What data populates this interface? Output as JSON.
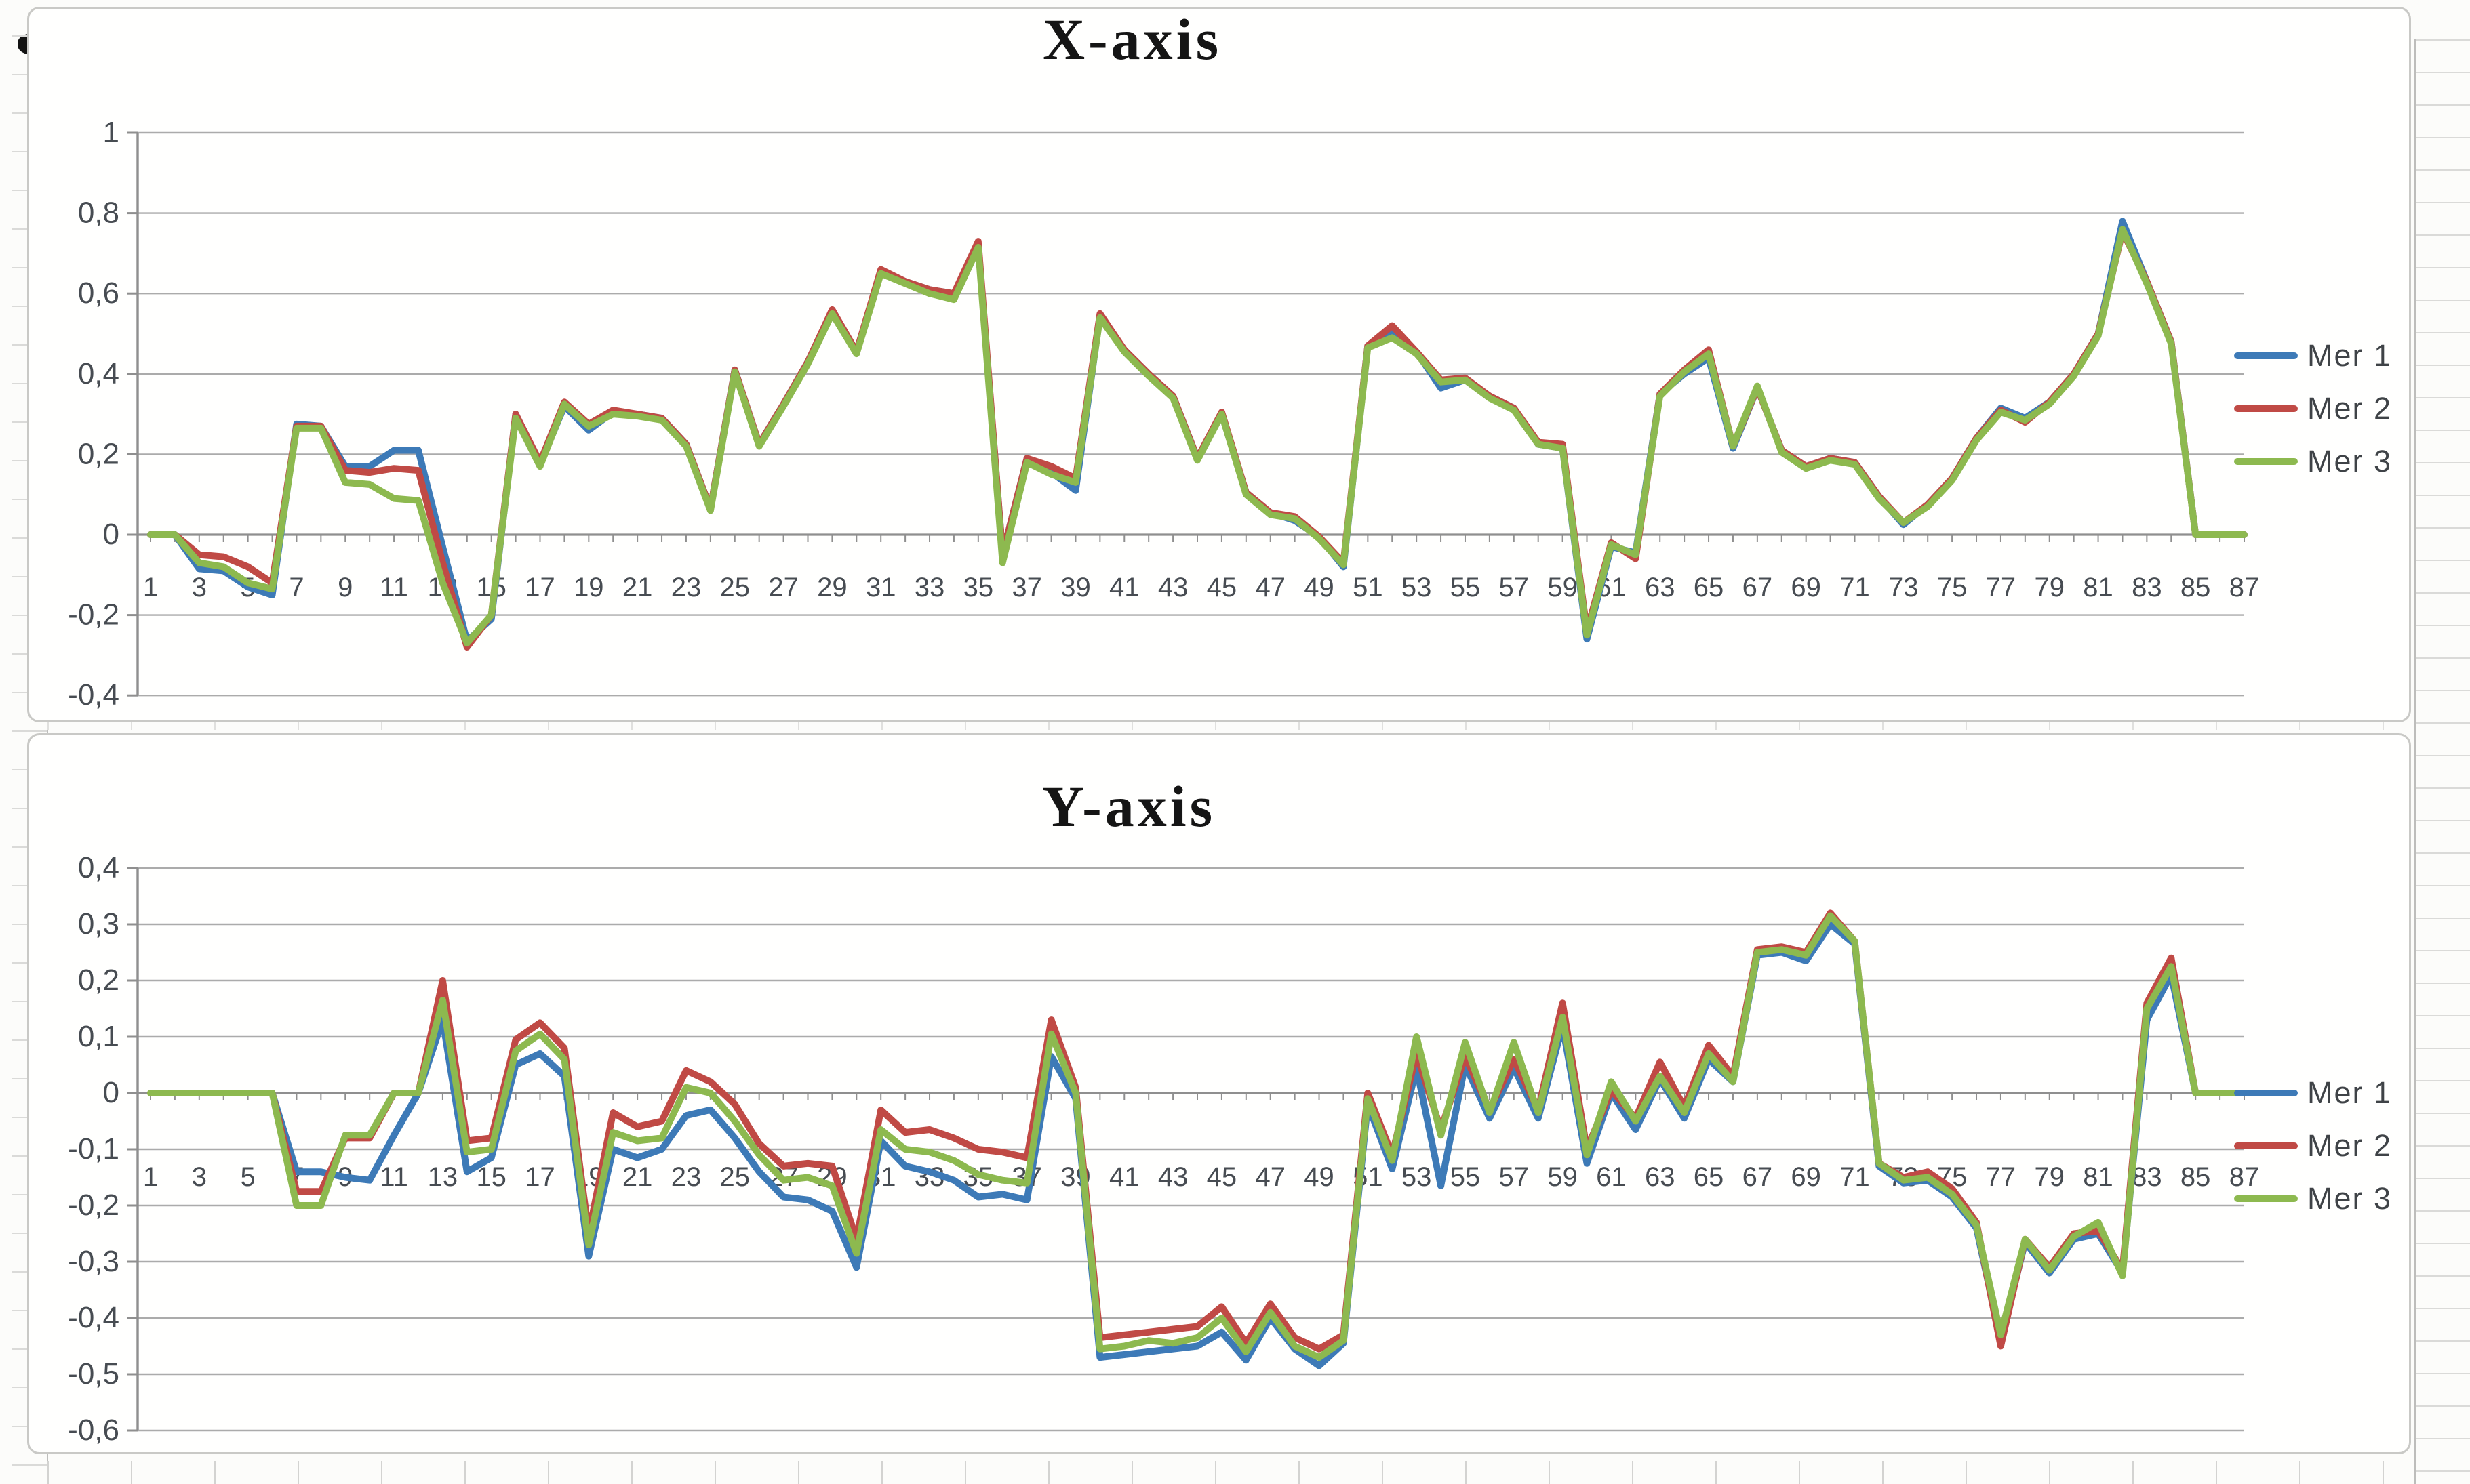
{
  "chart_data": [
    {
      "type": "line",
      "title": "X-axis",
      "legend_position": "right",
      "grid": true,
      "ylim": [
        -0.4,
        1.0
      ],
      "ytick_values": [
        1,
        0.8,
        0.6,
        0.4,
        0.2,
        0,
        -0.2,
        -0.4
      ],
      "ytick_labels": [
        "1",
        "0,8",
        "0,6",
        "0,4",
        "0,2",
        "0",
        "-0,2",
        "-0,4"
      ],
      "x_range": [
        1,
        87
      ],
      "x_tick_labels": [
        "1",
        "3",
        "5",
        "7",
        "9",
        "11",
        "13",
        "15",
        "17",
        "19",
        "21",
        "23",
        "25",
        "27",
        "29",
        "31",
        "33",
        "35",
        "37",
        "39",
        "41",
        "43",
        "45",
        "47",
        "49",
        "51",
        "53",
        "55",
        "57",
        "59",
        "61",
        "63",
        "65",
        "67",
        "69",
        "71",
        "73",
        "75",
        "77",
        "79",
        "81",
        "83",
        "85",
        "87"
      ],
      "series": [
        {
          "name": "Mer 1",
          "color": "#3d7ab7",
          "values": [
            0,
            0,
            -0.085,
            -0.09,
            -0.13,
            -0.15,
            0.275,
            0.27,
            0.17,
            0.17,
            0.21,
            0.21,
            -0.03,
            -0.265,
            -0.21,
            0.3,
            0.175,
            0.32,
            0.26,
            0.305,
            0.3,
            0.29,
            0.225,
            0.065,
            0.41,
            0.225,
            0.325,
            0.43,
            0.555,
            0.455,
            0.655,
            0.63,
            0.61,
            0.6,
            0.72,
            -0.05,
            0.19,
            0.155,
            0.11,
            0.545,
            0.46,
            0.4,
            0.345,
            0.19,
            0.3,
            0.105,
            0.055,
            0.035,
            -0.005,
            -0.08,
            0.47,
            0.505,
            0.455,
            0.365,
            0.385,
            0.345,
            0.315,
            0.225,
            0.215,
            -0.26,
            -0.03,
            -0.045,
            0.35,
            0.4,
            0.44,
            0.215,
            0.365,
            0.21,
            0.17,
            0.19,
            0.18,
            0.095,
            0.025,
            0.075,
            0.14,
            0.24,
            0.315,
            0.29,
            0.33,
            0.4,
            0.5,
            0.78,
            0.63,
            0.48,
            0,
            0,
            0
          ]
        },
        {
          "name": "Mer 2",
          "color": "#c04a45",
          "values": [
            0,
            0,
            -0.05,
            -0.055,
            -0.08,
            -0.12,
            0.27,
            0.27,
            0.16,
            0.155,
            0.165,
            0.16,
            -0.07,
            -0.28,
            -0.2,
            0.3,
            0.18,
            0.33,
            0.275,
            0.31,
            0.3,
            0.29,
            0.225,
            0.065,
            0.41,
            0.225,
            0.325,
            0.43,
            0.56,
            0.455,
            0.66,
            0.63,
            0.61,
            0.6,
            0.73,
            -0.05,
            0.19,
            0.17,
            0.14,
            0.55,
            0.46,
            0.4,
            0.345,
            0.19,
            0.305,
            0.105,
            0.055,
            0.045,
            -0.005,
            -0.07,
            0.47,
            0.52,
            0.455,
            0.385,
            0.39,
            0.345,
            0.315,
            0.23,
            0.225,
            -0.24,
            -0.02,
            -0.06,
            0.35,
            0.41,
            0.46,
            0.22,
            0.365,
            0.21,
            0.17,
            0.19,
            0.18,
            0.095,
            0.03,
            0.075,
            0.14,
            0.24,
            0.31,
            0.28,
            0.33,
            0.4,
            0.5,
            0.755,
            0.63,
            0.48,
            0,
            0,
            0
          ]
        },
        {
          "name": "Mer 3",
          "color": "#8db94f",
          "values": [
            0,
            0,
            -0.07,
            -0.08,
            -0.12,
            -0.135,
            0.265,
            0.265,
            0.13,
            0.125,
            0.09,
            0.085,
            -0.12,
            -0.27,
            -0.2,
            0.29,
            0.17,
            0.325,
            0.27,
            0.3,
            0.295,
            0.285,
            0.22,
            0.06,
            0.405,
            0.22,
            0.32,
            0.425,
            0.55,
            0.45,
            0.65,
            0.625,
            0.6,
            0.585,
            0.715,
            -0.07,
            0.18,
            0.15,
            0.13,
            0.54,
            0.455,
            0.395,
            0.34,
            0.185,
            0.3,
            0.1,
            0.05,
            0.04,
            -0.01,
            -0.075,
            0.465,
            0.49,
            0.45,
            0.38,
            0.385,
            0.34,
            0.31,
            0.225,
            0.215,
            -0.25,
            -0.025,
            -0.05,
            0.345,
            0.405,
            0.45,
            0.22,
            0.37,
            0.205,
            0.165,
            0.185,
            0.175,
            0.09,
            0.03,
            0.07,
            0.135,
            0.235,
            0.305,
            0.285,
            0.325,
            0.395,
            0.495,
            0.76,
            0.625,
            0.475,
            0,
            0,
            0
          ]
        }
      ]
    },
    {
      "type": "line",
      "title": "Y-axis",
      "legend_position": "right",
      "grid": true,
      "ylim": [
        -0.6,
        0.4
      ],
      "ytick_values": [
        0.4,
        0.3,
        0.2,
        0.1,
        0,
        -0.1,
        -0.2,
        -0.3,
        -0.4,
        -0.5,
        -0.6
      ],
      "ytick_labels": [
        "0,4",
        "0,3",
        "0,2",
        "0,1",
        "0",
        "-0,1",
        "-0,2",
        "-0,3",
        "-0,4",
        "-0,5",
        "-0,6"
      ],
      "x_range": [
        1,
        87
      ],
      "x_tick_labels": [
        "1",
        "3",
        "5",
        "7",
        "9",
        "11",
        "13",
        "15",
        "17",
        "19",
        "21",
        "23",
        "25",
        "27",
        "29",
        "31",
        "33",
        "35",
        "37",
        "39",
        "41",
        "43",
        "45",
        "47",
        "49",
        "51",
        "53",
        "55",
        "57",
        "59",
        "61",
        "63",
        "65",
        "67",
        "69",
        "71",
        "73",
        "75",
        "77",
        "79",
        "81",
        "83",
        "85",
        "87"
      ],
      "series": [
        {
          "name": "Mer 1",
          "color": "#3d7ab7",
          "values": [
            0,
            0,
            0,
            0,
            0,
            0,
            -0.14,
            -0.14,
            -0.15,
            -0.155,
            -0.075,
            0,
            0.13,
            -0.14,
            -0.115,
            0.05,
            0.07,
            0.03,
            -0.29,
            -0.1,
            -0.115,
            -0.1,
            -0.04,
            -0.03,
            -0.08,
            -0.14,
            -0.185,
            -0.19,
            -0.21,
            -0.31,
            -0.085,
            -0.13,
            -0.14,
            -0.155,
            -0.185,
            -0.18,
            -0.19,
            0.065,
            -0.01,
            -0.47,
            -0.465,
            -0.46,
            -0.455,
            -0.45,
            -0.425,
            -0.475,
            -0.4,
            -0.455,
            -0.485,
            -0.445,
            -0.02,
            -0.135,
            0.045,
            -0.165,
            0.05,
            -0.045,
            0.045,
            -0.045,
            0.12,
            -0.125,
            0,
            -0.065,
            0.025,
            -0.045,
            0.06,
            0.02,
            0.245,
            0.25,
            0.235,
            0.3,
            0.265,
            -0.13,
            -0.16,
            -0.155,
            -0.185,
            -0.24,
            -0.44,
            -0.265,
            -0.32,
            -0.26,
            -0.25,
            -0.32,
            0.13,
            0.21,
            0,
            0,
            0
          ]
        },
        {
          "name": "Mer 2",
          "color": "#c04a45",
          "values": [
            0,
            0,
            0,
            0,
            0,
            0,
            -0.175,
            -0.175,
            -0.08,
            -0.08,
            0,
            0,
            0.2,
            -0.085,
            -0.08,
            0.095,
            0.125,
            0.08,
            -0.25,
            -0.035,
            -0.06,
            -0.05,
            0.04,
            0.02,
            -0.02,
            -0.09,
            -0.13,
            -0.125,
            -0.13,
            -0.26,
            -0.03,
            -0.07,
            -0.065,
            -0.08,
            -0.1,
            -0.105,
            -0.115,
            0.13,
            0.01,
            -0.435,
            -0.43,
            -0.425,
            -0.42,
            -0.415,
            -0.38,
            -0.445,
            -0.375,
            -0.435,
            -0.455,
            -0.43,
            0,
            -0.11,
            0.07,
            -0.065,
            0.065,
            -0.03,
            0.06,
            -0.03,
            0.16,
            -0.1,
            0.005,
            -0.045,
            0.055,
            -0.025,
            0.085,
            0.03,
            0.255,
            0.26,
            0.25,
            0.32,
            0.27,
            -0.125,
            -0.15,
            -0.14,
            -0.17,
            -0.23,
            -0.45,
            -0.26,
            -0.31,
            -0.25,
            -0.245,
            -0.315,
            0.16,
            0.24,
            0,
            0,
            0
          ]
        },
        {
          "name": "Mer 3",
          "color": "#8db94f",
          "values": [
            0,
            0,
            0,
            0,
            0,
            0,
            -0.2,
            -0.2,
            -0.075,
            -0.075,
            0,
            0,
            0.165,
            -0.105,
            -0.1,
            0.075,
            0.105,
            0.06,
            -0.27,
            -0.07,
            -0.085,
            -0.08,
            0.01,
            0,
            -0.05,
            -0.11,
            -0.155,
            -0.15,
            -0.165,
            -0.285,
            -0.065,
            -0.1,
            -0.105,
            -0.12,
            -0.145,
            -0.155,
            -0.16,
            0.105,
            0,
            -0.455,
            -0.45,
            -0.44,
            -0.445,
            -0.435,
            -0.4,
            -0.46,
            -0.39,
            -0.45,
            -0.47,
            -0.44,
            -0.01,
            -0.12,
            0.1,
            -0.075,
            0.09,
            -0.035,
            0.09,
            -0.035,
            0.135,
            -0.11,
            0.02,
            -0.05,
            0.03,
            -0.035,
            0.07,
            0.02,
            0.25,
            0.255,
            0.245,
            0.315,
            0.27,
            -0.125,
            -0.155,
            -0.15,
            -0.18,
            -0.235,
            -0.43,
            -0.26,
            -0.315,
            -0.255,
            -0.23,
            -0.325,
            0.15,
            0.225,
            0,
            0,
            0
          ]
        }
      ]
    }
  ]
}
